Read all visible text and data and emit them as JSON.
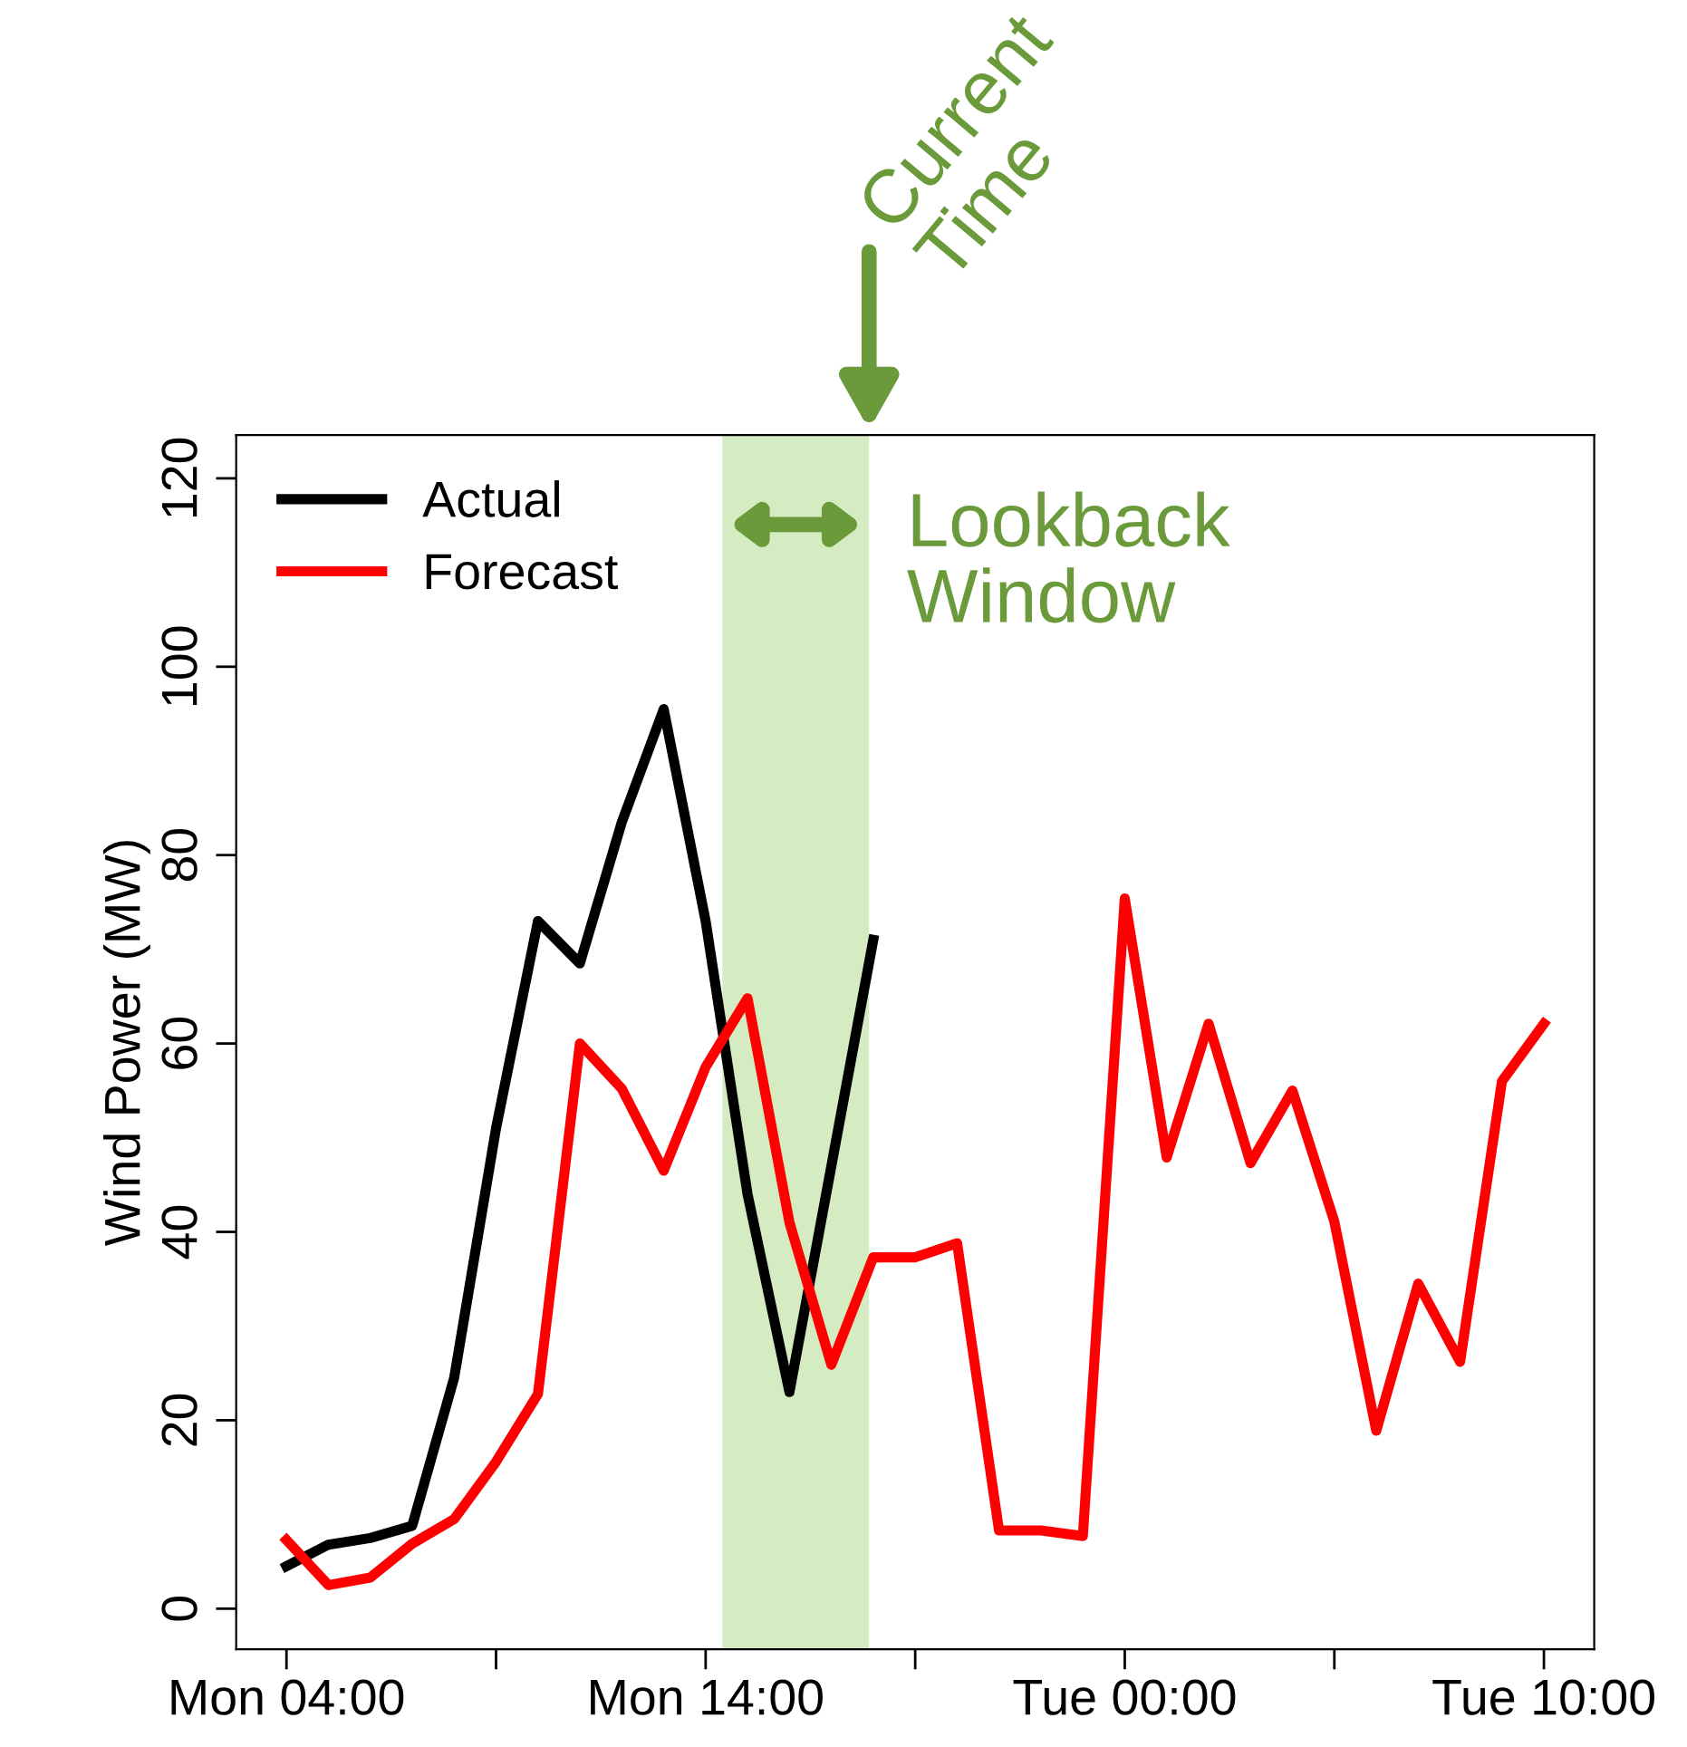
{
  "chart_data": {
    "type": "line",
    "ylabel": "Wind Power (MW)",
    "categories": [
      "Mon 04:00",
      null,
      null,
      null,
      null,
      null,
      null,
      null,
      null,
      null,
      "Mon 14:00",
      null,
      null,
      null,
      null,
      null,
      null,
      null,
      null,
      null,
      "Tue 00:00",
      null,
      null,
      null,
      null,
      null,
      null,
      null,
      null,
      null,
      "Tue 10:00"
    ],
    "series": [
      {
        "name": "Actual",
        "color": "#000000",
        "values": [
          4.5,
          6.8,
          7.5,
          8.8,
          24.5,
          51,
          73,
          68.5,
          83.5,
          95.5,
          73,
          44,
          23,
          47,
          71,
          null,
          null,
          null,
          null,
          null,
          null,
          null,
          null,
          null,
          null,
          null,
          null,
          null,
          null,
          null,
          null
        ]
      },
      {
        "name": "Forecast",
        "color": "#ff0000",
        "values": [
          7.3,
          2.5,
          3.3,
          6.9,
          9.5,
          15.6,
          22.8,
          60,
          55.2,
          46.5,
          57.5,
          64.8,
          41,
          25.9,
          37.3,
          37.3,
          38.8,
          8.3,
          8.3,
          7.7,
          75.4,
          47.9,
          62.1,
          47.3,
          55,
          41.1,
          18.9,
          34.5,
          26.2,
          56,
          62.1
        ]
      }
    ],
    "ylim": [
      -4.3,
      124.6
    ],
    "yticks": [
      0,
      20,
      40,
      60,
      80,
      100,
      120
    ],
    "annotations": [
      "Current Time",
      "Lookback Window"
    ],
    "legend": "top left",
    "grid": false,
    "marker": "none",
    "line_style": "solid"
  }
}
